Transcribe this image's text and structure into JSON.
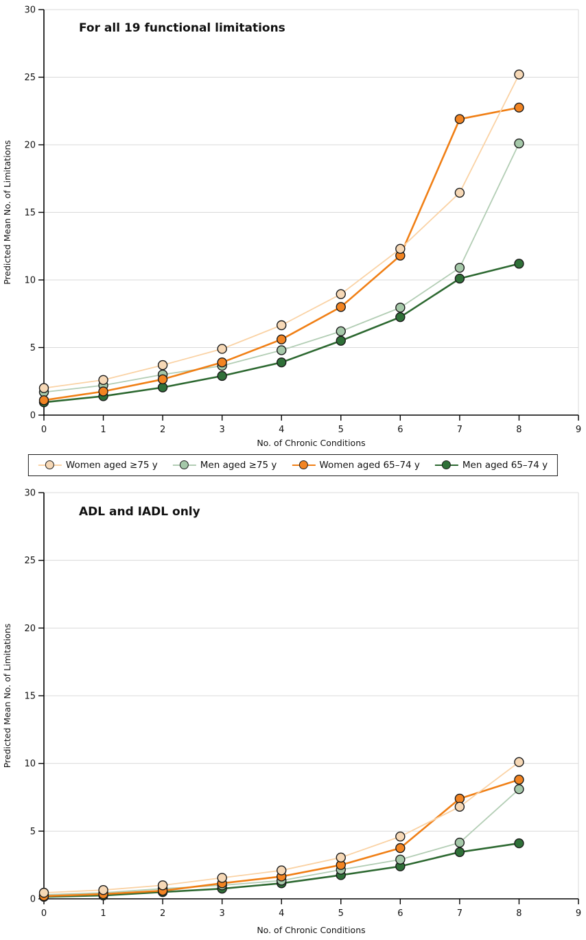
{
  "page": {
    "background": "#ffffff",
    "grid_color": "#d9d9d9",
    "axis_color": "#000000",
    "text_color": "#111111"
  },
  "legend": {
    "items": [
      {
        "label": "Women aged ≥75 y",
        "line_color": "#FAD2A4",
        "fill_color": "#F6D8B6"
      },
      {
        "label": "Men aged ≥75 y",
        "line_color": "#B2CDB4",
        "fill_color": "#A5C8A9"
      },
      {
        "label": "Women aged 65–74 y",
        "line_color": "#F07F15",
        "fill_color": "#F28422"
      },
      {
        "label": "Men aged 65–74 y",
        "line_color": "#2C6830",
        "fill_color": "#2F7038"
      }
    ]
  },
  "chart_data": [
    {
      "type": "line",
      "title": "For all 19 functional limitations",
      "xlabel": "No. of Chronic Conditions",
      "ylabel": "Predicted Mean No. of Limitations",
      "xlim": [
        0,
        9
      ],
      "ylim": [
        0,
        30
      ],
      "x_ticks": [
        0,
        1,
        2,
        3,
        4,
        5,
        6,
        7,
        8,
        9
      ],
      "y_ticks": [
        0,
        5,
        10,
        15,
        20,
        25,
        30
      ],
      "grid": "horizontal",
      "legend_position": "below-outside",
      "x": [
        0,
        1,
        2,
        3,
        4,
        5,
        6,
        7,
        8
      ],
      "series": [
        {
          "name": "Women aged ≥75 y",
          "values": [
            2.0,
            2.6,
            3.7,
            4.9,
            6.65,
            8.95,
            12.3,
            16.45,
            25.2
          ],
          "line_color": "#FAD2A4",
          "fill_color": "#F6D8B6",
          "line_width": 1.8
        },
        {
          "name": "Men aged ≥75 y",
          "values": [
            1.7,
            2.2,
            3.0,
            3.65,
            4.8,
            6.2,
            7.95,
            10.9,
            20.1
          ],
          "line_color": "#B2CDB4",
          "fill_color": "#A5C8A9",
          "line_width": 1.8
        },
        {
          "name": "Women aged 65–74 y",
          "values": [
            1.1,
            1.75,
            2.65,
            3.9,
            5.6,
            8.0,
            11.8,
            21.9,
            22.75
          ],
          "line_color": "#F07F15",
          "fill_color": "#F28422",
          "line_width": 2.6
        },
        {
          "name": "Men aged 65–74 y",
          "values": [
            0.95,
            1.4,
            2.05,
            2.9,
            3.9,
            5.5,
            7.25,
            10.1,
            11.2
          ],
          "line_color": "#2C6830",
          "fill_color": "#2F7038",
          "line_width": 2.6
        }
      ]
    },
    {
      "type": "line",
      "title": "ADL and IADL only",
      "xlabel": "No. of Chronic Conditions",
      "ylabel": "Predicted Mean No. of Limitations",
      "xlim": [
        0,
        9
      ],
      "ylim": [
        0,
        30
      ],
      "x_ticks": [
        0,
        1,
        2,
        3,
        4,
        5,
        6,
        7,
        8,
        9
      ],
      "y_ticks": [
        0,
        5,
        10,
        15,
        20,
        25,
        30
      ],
      "grid": "horizontal",
      "x": [
        0,
        1,
        2,
        3,
        4,
        5,
        6,
        7,
        8
      ],
      "series": [
        {
          "name": "Women aged ≥75 y",
          "values": [
            0.45,
            0.65,
            1.0,
            1.55,
            2.1,
            3.05,
            4.6,
            6.8,
            10.1
          ],
          "line_color": "#FAD2A4",
          "fill_color": "#F6D8B6",
          "line_width": 1.8
        },
        {
          "name": "Men aged ≥75 y",
          "values": [
            0.3,
            0.45,
            0.75,
            1.0,
            1.35,
            2.15,
            2.9,
            4.15,
            8.1
          ],
          "line_color": "#B2CDB4",
          "fill_color": "#A5C8A9",
          "line_width": 1.8
        },
        {
          "name": "Women aged 65–74 y",
          "values": [
            0.2,
            0.35,
            0.6,
            1.15,
            1.65,
            2.5,
            3.75,
            7.4,
            8.8
          ],
          "line_color": "#F07F15",
          "fill_color": "#F28422",
          "line_width": 2.6
        },
        {
          "name": "Men aged 65–74 y",
          "values": [
            0.15,
            0.25,
            0.5,
            0.75,
            1.15,
            1.75,
            2.4,
            3.45,
            4.1
          ],
          "line_color": "#2C6830",
          "fill_color": "#2F7038",
          "line_width": 2.6
        }
      ]
    }
  ]
}
